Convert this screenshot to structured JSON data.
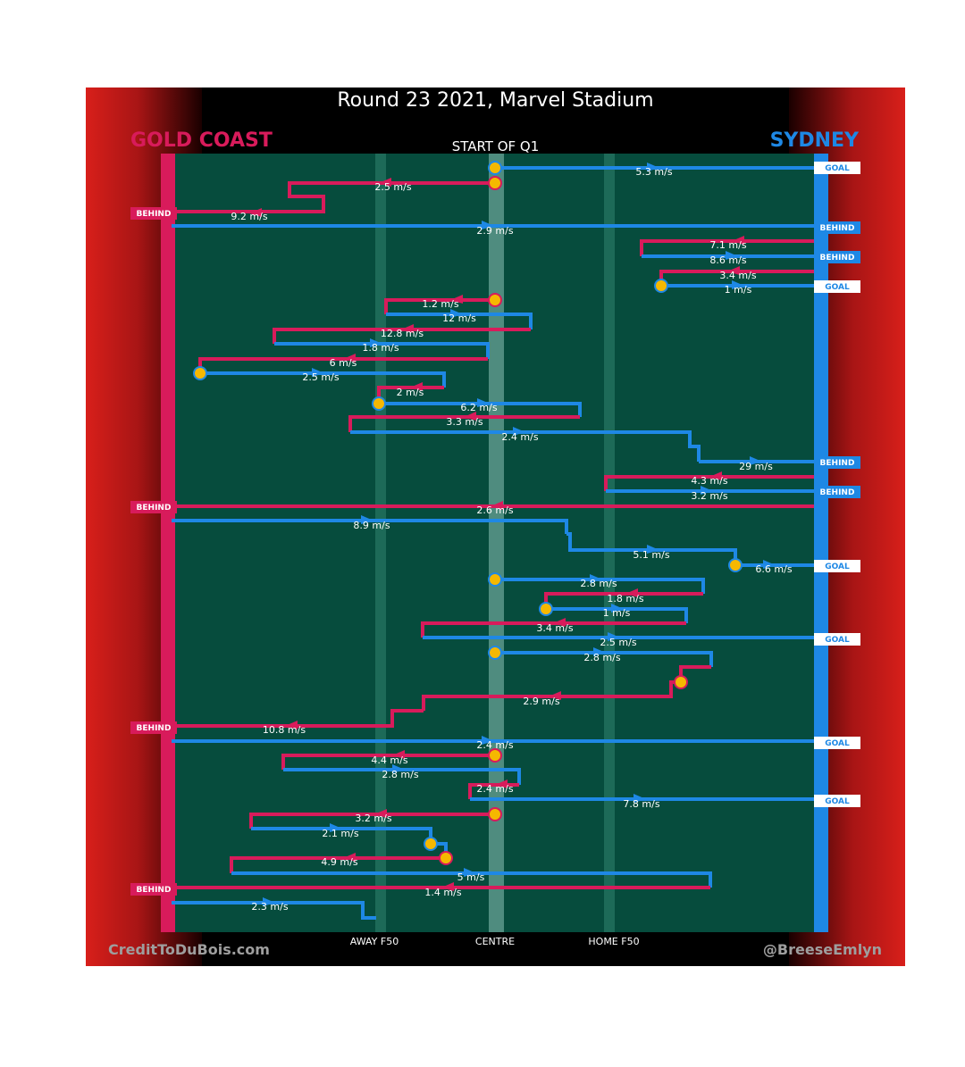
{
  "title": "Round 23 2021, Marvel Stadium",
  "quarter": "START OF Q1",
  "teams": {
    "left": {
      "name": "GOLD COAST",
      "color": "#d81b5b"
    },
    "right": {
      "name": "SYDNEY",
      "color": "#1e88e5"
    }
  },
  "credits": {
    "left": "CreditToDuBois.com",
    "right": "@BreeseEmlyn"
  },
  "colors": {
    "field": "#064c3d",
    "ball_marker": "#f5b800"
  },
  "chart_data": {
    "type": "line",
    "x_ticks": [
      "AWAY F50",
      "CENTRE",
      "HOME F50"
    ],
    "events": [
      {
        "speed": "5.3 m/s",
        "team": "right",
        "outcome": "GOAL"
      },
      {
        "speed": "2.5 m/s",
        "team": "left"
      },
      {
        "speed": "9.2 m/s",
        "team": "left",
        "outcome": "BEHIND"
      },
      {
        "speed": "2.9 m/s",
        "team": "right",
        "outcome": "BEHIND"
      },
      {
        "speed": "7.1 m/s",
        "team": "left"
      },
      {
        "speed": "8.6 m/s",
        "team": "right",
        "outcome": "BEHIND"
      },
      {
        "speed": "3.4 m/s",
        "team": "left"
      },
      {
        "speed": "1 m/s",
        "team": "right",
        "outcome": "GOAL"
      },
      {
        "speed": "1.2 m/s",
        "team": "left"
      },
      {
        "speed": "12 m/s",
        "team": "right"
      },
      {
        "speed": "12.8 m/s",
        "team": "left"
      },
      {
        "speed": "1.8 m/s",
        "team": "right"
      },
      {
        "speed": "6 m/s",
        "team": "left"
      },
      {
        "speed": "2.5 m/s",
        "team": "right"
      },
      {
        "speed": "2 m/s",
        "team": "left"
      },
      {
        "speed": "6.2 m/s",
        "team": "right"
      },
      {
        "speed": "3.3 m/s",
        "team": "left"
      },
      {
        "speed": "2.4 m/s",
        "team": "right"
      },
      {
        "speed": "29 m/s",
        "team": "right",
        "outcome": "BEHIND"
      },
      {
        "speed": "4.3 m/s",
        "team": "left"
      },
      {
        "speed": "3.2 m/s",
        "team": "right",
        "outcome": "BEHIND"
      },
      {
        "speed": "2.6 m/s",
        "team": "left",
        "outcome": "BEHIND"
      },
      {
        "speed": "8.9 m/s",
        "team": "right"
      },
      {
        "speed": "5.1 m/s",
        "team": "right"
      },
      {
        "speed": "6.6 m/s",
        "team": "right",
        "outcome": "GOAL"
      },
      {
        "speed": "2.8 m/s",
        "team": "right"
      },
      {
        "speed": "1.8 m/s",
        "team": "left"
      },
      {
        "speed": "1 m/s",
        "team": "right"
      },
      {
        "speed": "3.4 m/s",
        "team": "left"
      },
      {
        "speed": "2.5 m/s",
        "team": "right",
        "outcome": "GOAL"
      },
      {
        "speed": "2.8 m/s",
        "team": "right"
      },
      {
        "speed": "2.9 m/s",
        "team": "left"
      },
      {
        "speed": "10.8 m/s",
        "team": "left",
        "outcome": "BEHIND"
      },
      {
        "speed": "2.4 m/s",
        "team": "right",
        "outcome": "GOAL"
      },
      {
        "speed": "4.4 m/s",
        "team": "left"
      },
      {
        "speed": "2.8 m/s",
        "team": "right"
      },
      {
        "speed": "2.4 m/s",
        "team": "left"
      },
      {
        "speed": "7.8 m/s",
        "team": "right",
        "outcome": "GOAL"
      },
      {
        "speed": "3.2 m/s",
        "team": "left"
      },
      {
        "speed": "2.1 m/s",
        "team": "right"
      },
      {
        "speed": "4.9 m/s",
        "team": "left"
      },
      {
        "speed": "5 m/s",
        "team": "right"
      },
      {
        "speed": "1.4 m/s",
        "team": "left",
        "outcome": "BEHIND"
      },
      {
        "speed": "2.3 m/s",
        "team": "right"
      }
    ]
  }
}
